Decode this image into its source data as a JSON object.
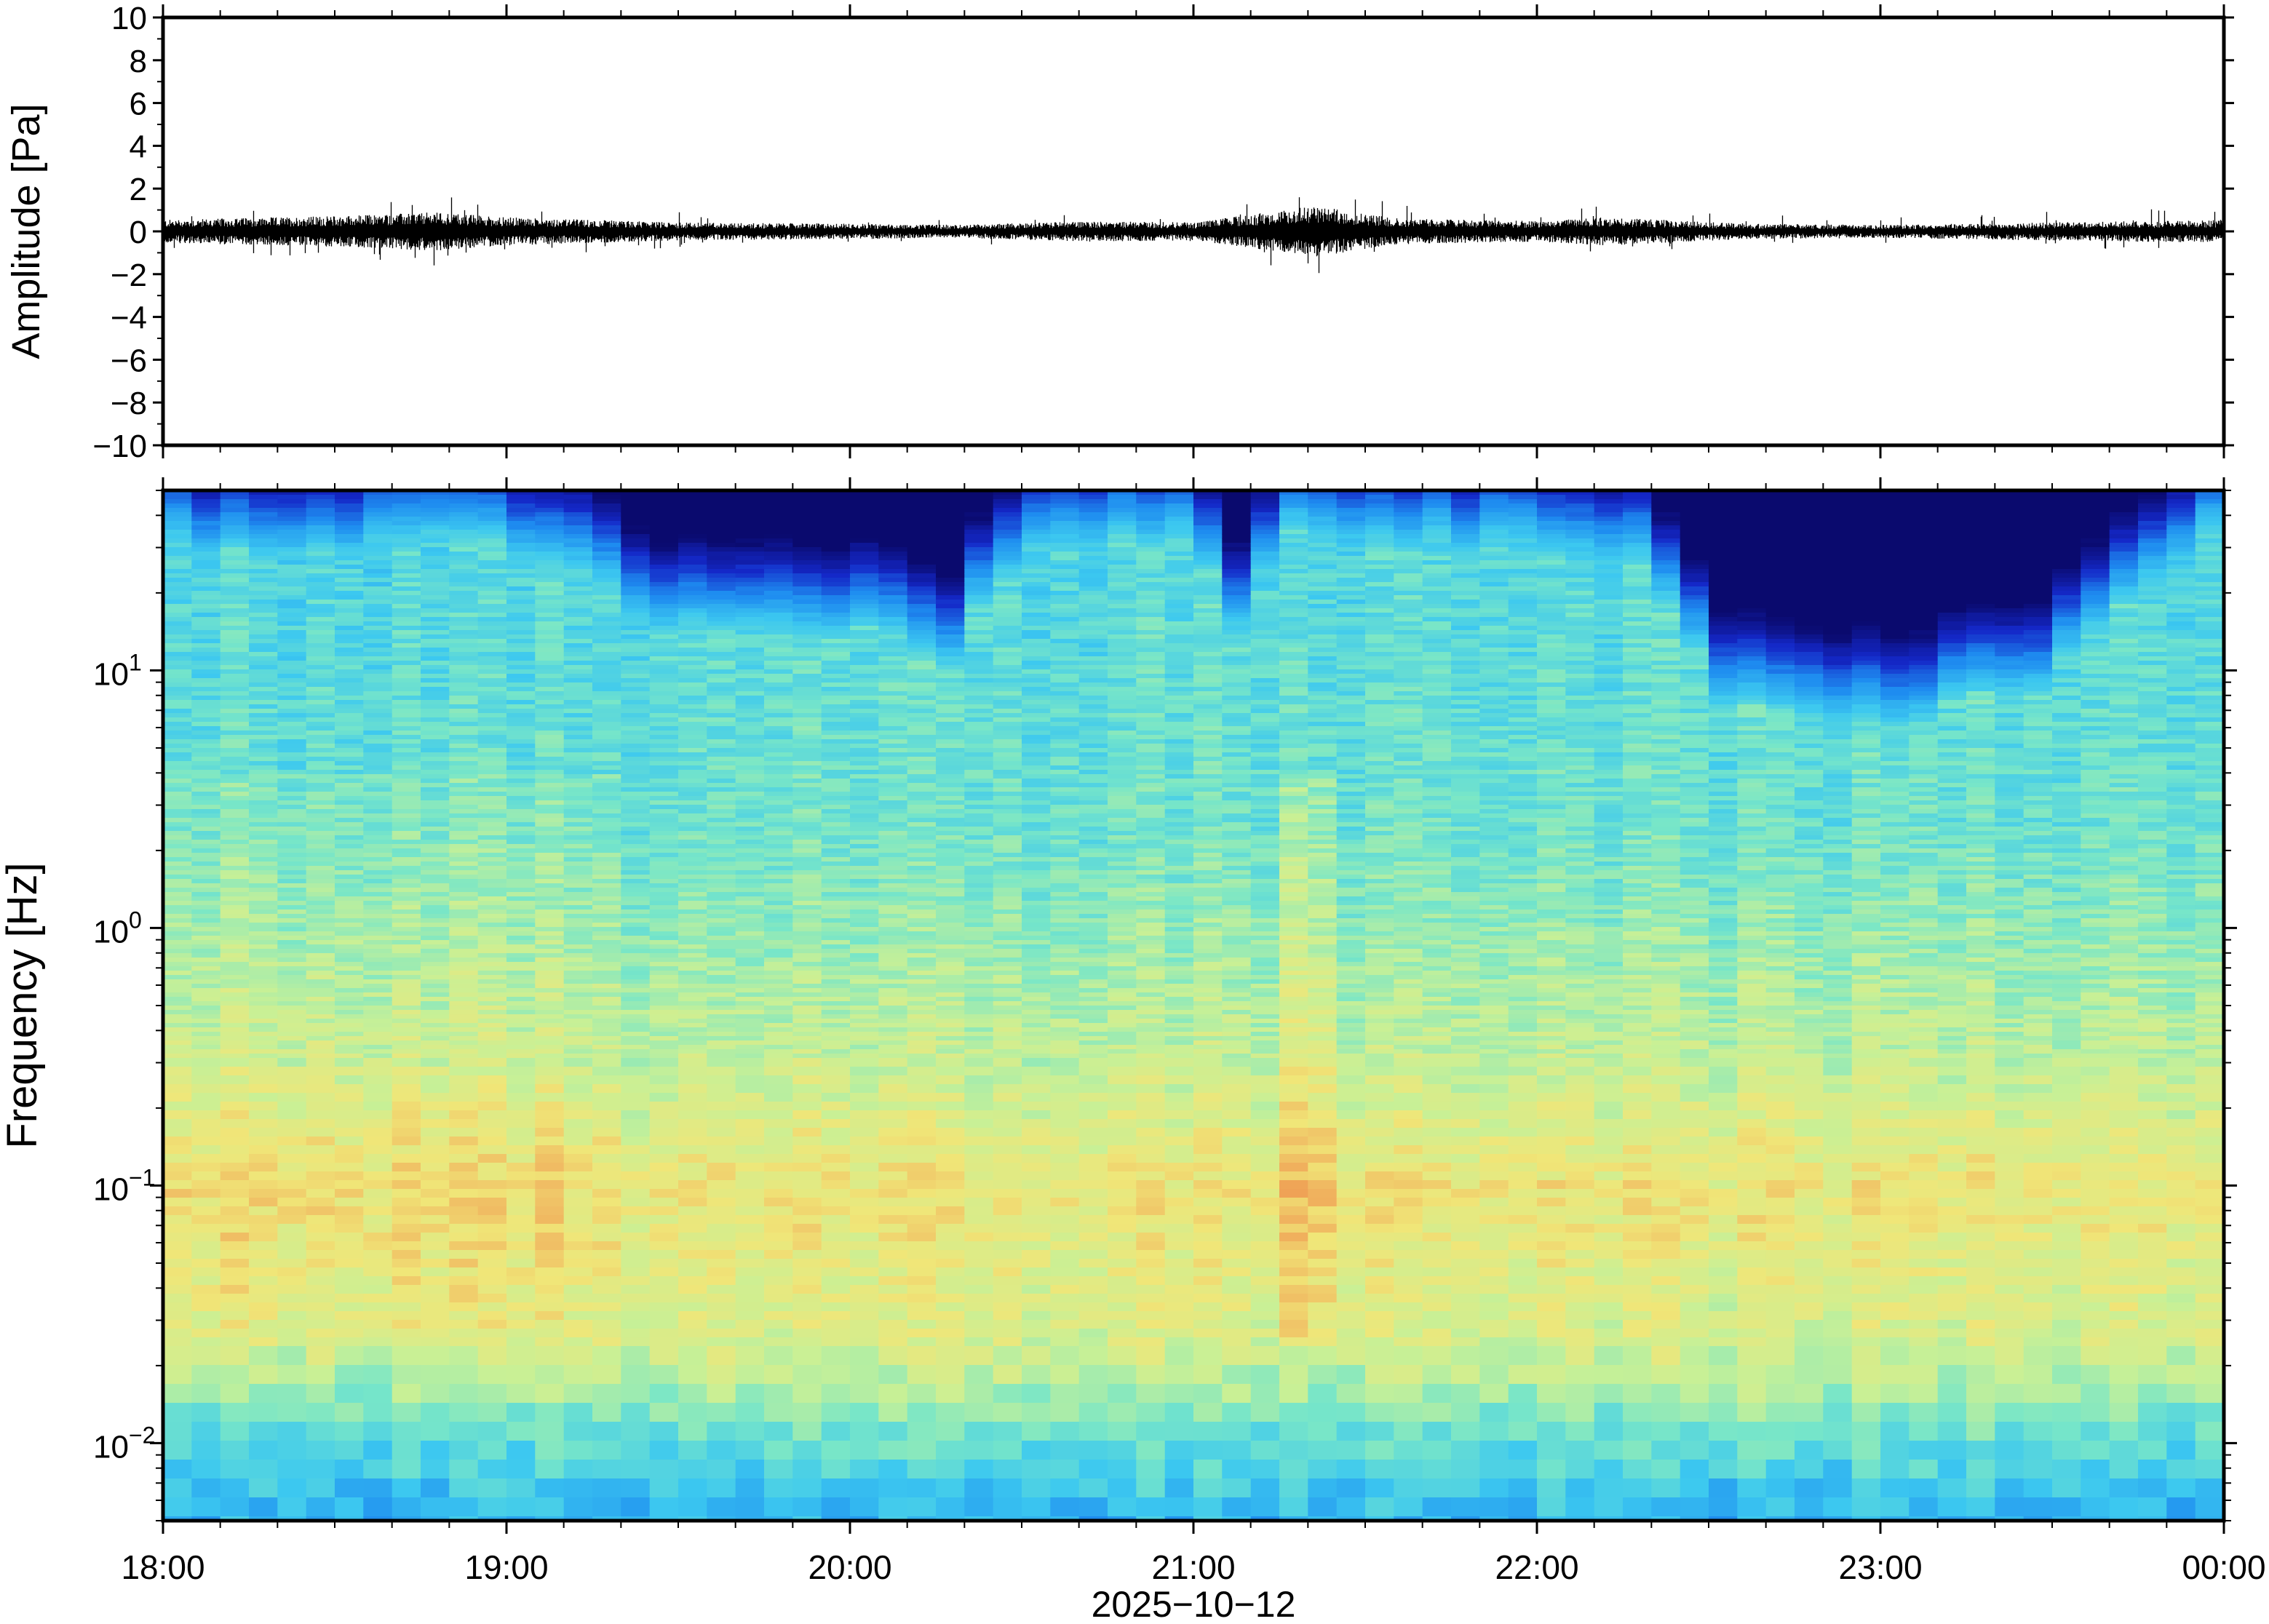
{
  "chart_data": [
    {
      "type": "line",
      "panel": "waveform",
      "ylabel": "Amplitude [Pa]",
      "ylim": [
        -10,
        10
      ],
      "yticks": [
        10,
        8,
        6,
        4,
        2,
        0,
        -2,
        -4,
        -6,
        -8,
        -10
      ],
      "ytick_labels": [
        "10",
        "8",
        "6",
        "4",
        "2",
        "0",
        "−2",
        "−4",
        "−6",
        "−8",
        "−10"
      ],
      "x_hours": [
        18,
        18.5,
        18.8,
        19,
        19.5,
        20,
        20.3,
        20.7,
        21,
        21.35,
        21.6,
        22,
        22.2,
        22.6,
        23,
        23.5,
        24
      ],
      "envelope_pa": [
        0.45,
        0.6,
        0.75,
        0.55,
        0.35,
        0.3,
        0.25,
        0.4,
        0.35,
        1.0,
        0.5,
        0.4,
        0.55,
        0.3,
        0.25,
        0.35,
        0.45
      ],
      "series": [
        {
          "name": "",
          "color": "#000000"
        }
      ]
    },
    {
      "type": "heatmap",
      "panel": "spectrogram",
      "ylabel": "Frequency [Hz]",
      "yscale": "log",
      "ylim_hz": [
        0.005,
        50
      ],
      "yticks": [
        {
          "base": "10",
          "exp": "1",
          "value": 10
        },
        {
          "base": "10",
          "exp": "0",
          "value": 1
        },
        {
          "base": "10",
          "exp": "−1",
          "value": 0.1
        },
        {
          "base": "10",
          "exp": "−2",
          "value": 0.01
        }
      ],
      "colormap": [
        "#0a0a6e",
        "#1428c8",
        "#1e8cf0",
        "#3cc8f0",
        "#78e6c8",
        "#c8f096",
        "#f0e678",
        "#f0aa5a",
        "#e66e3c"
      ],
      "time_hours": [
        18,
        18.5,
        18.8,
        19,
        19.3,
        19.5,
        20,
        20.3,
        20.5,
        21,
        21.1,
        21.3,
        21.5,
        22,
        22.3,
        22.5,
        23,
        23.5,
        23.8,
        24
      ],
      "upper_noise_cutoff_hz": [
        30,
        28,
        32,
        30,
        20,
        14,
        15,
        10,
        30,
        32,
        12,
        35,
        32,
        30,
        25,
        8,
        6,
        9,
        22,
        35
      ]
    }
  ],
  "xaxis": {
    "ticks_hours": [
      18,
      19,
      20,
      21,
      22,
      23,
      24
    ],
    "tick_labels": [
      "18:00",
      "19:00",
      "20:00",
      "21:00",
      "22:00",
      "23:00",
      "00:00"
    ],
    "xlabel": "2025−10−12"
  }
}
